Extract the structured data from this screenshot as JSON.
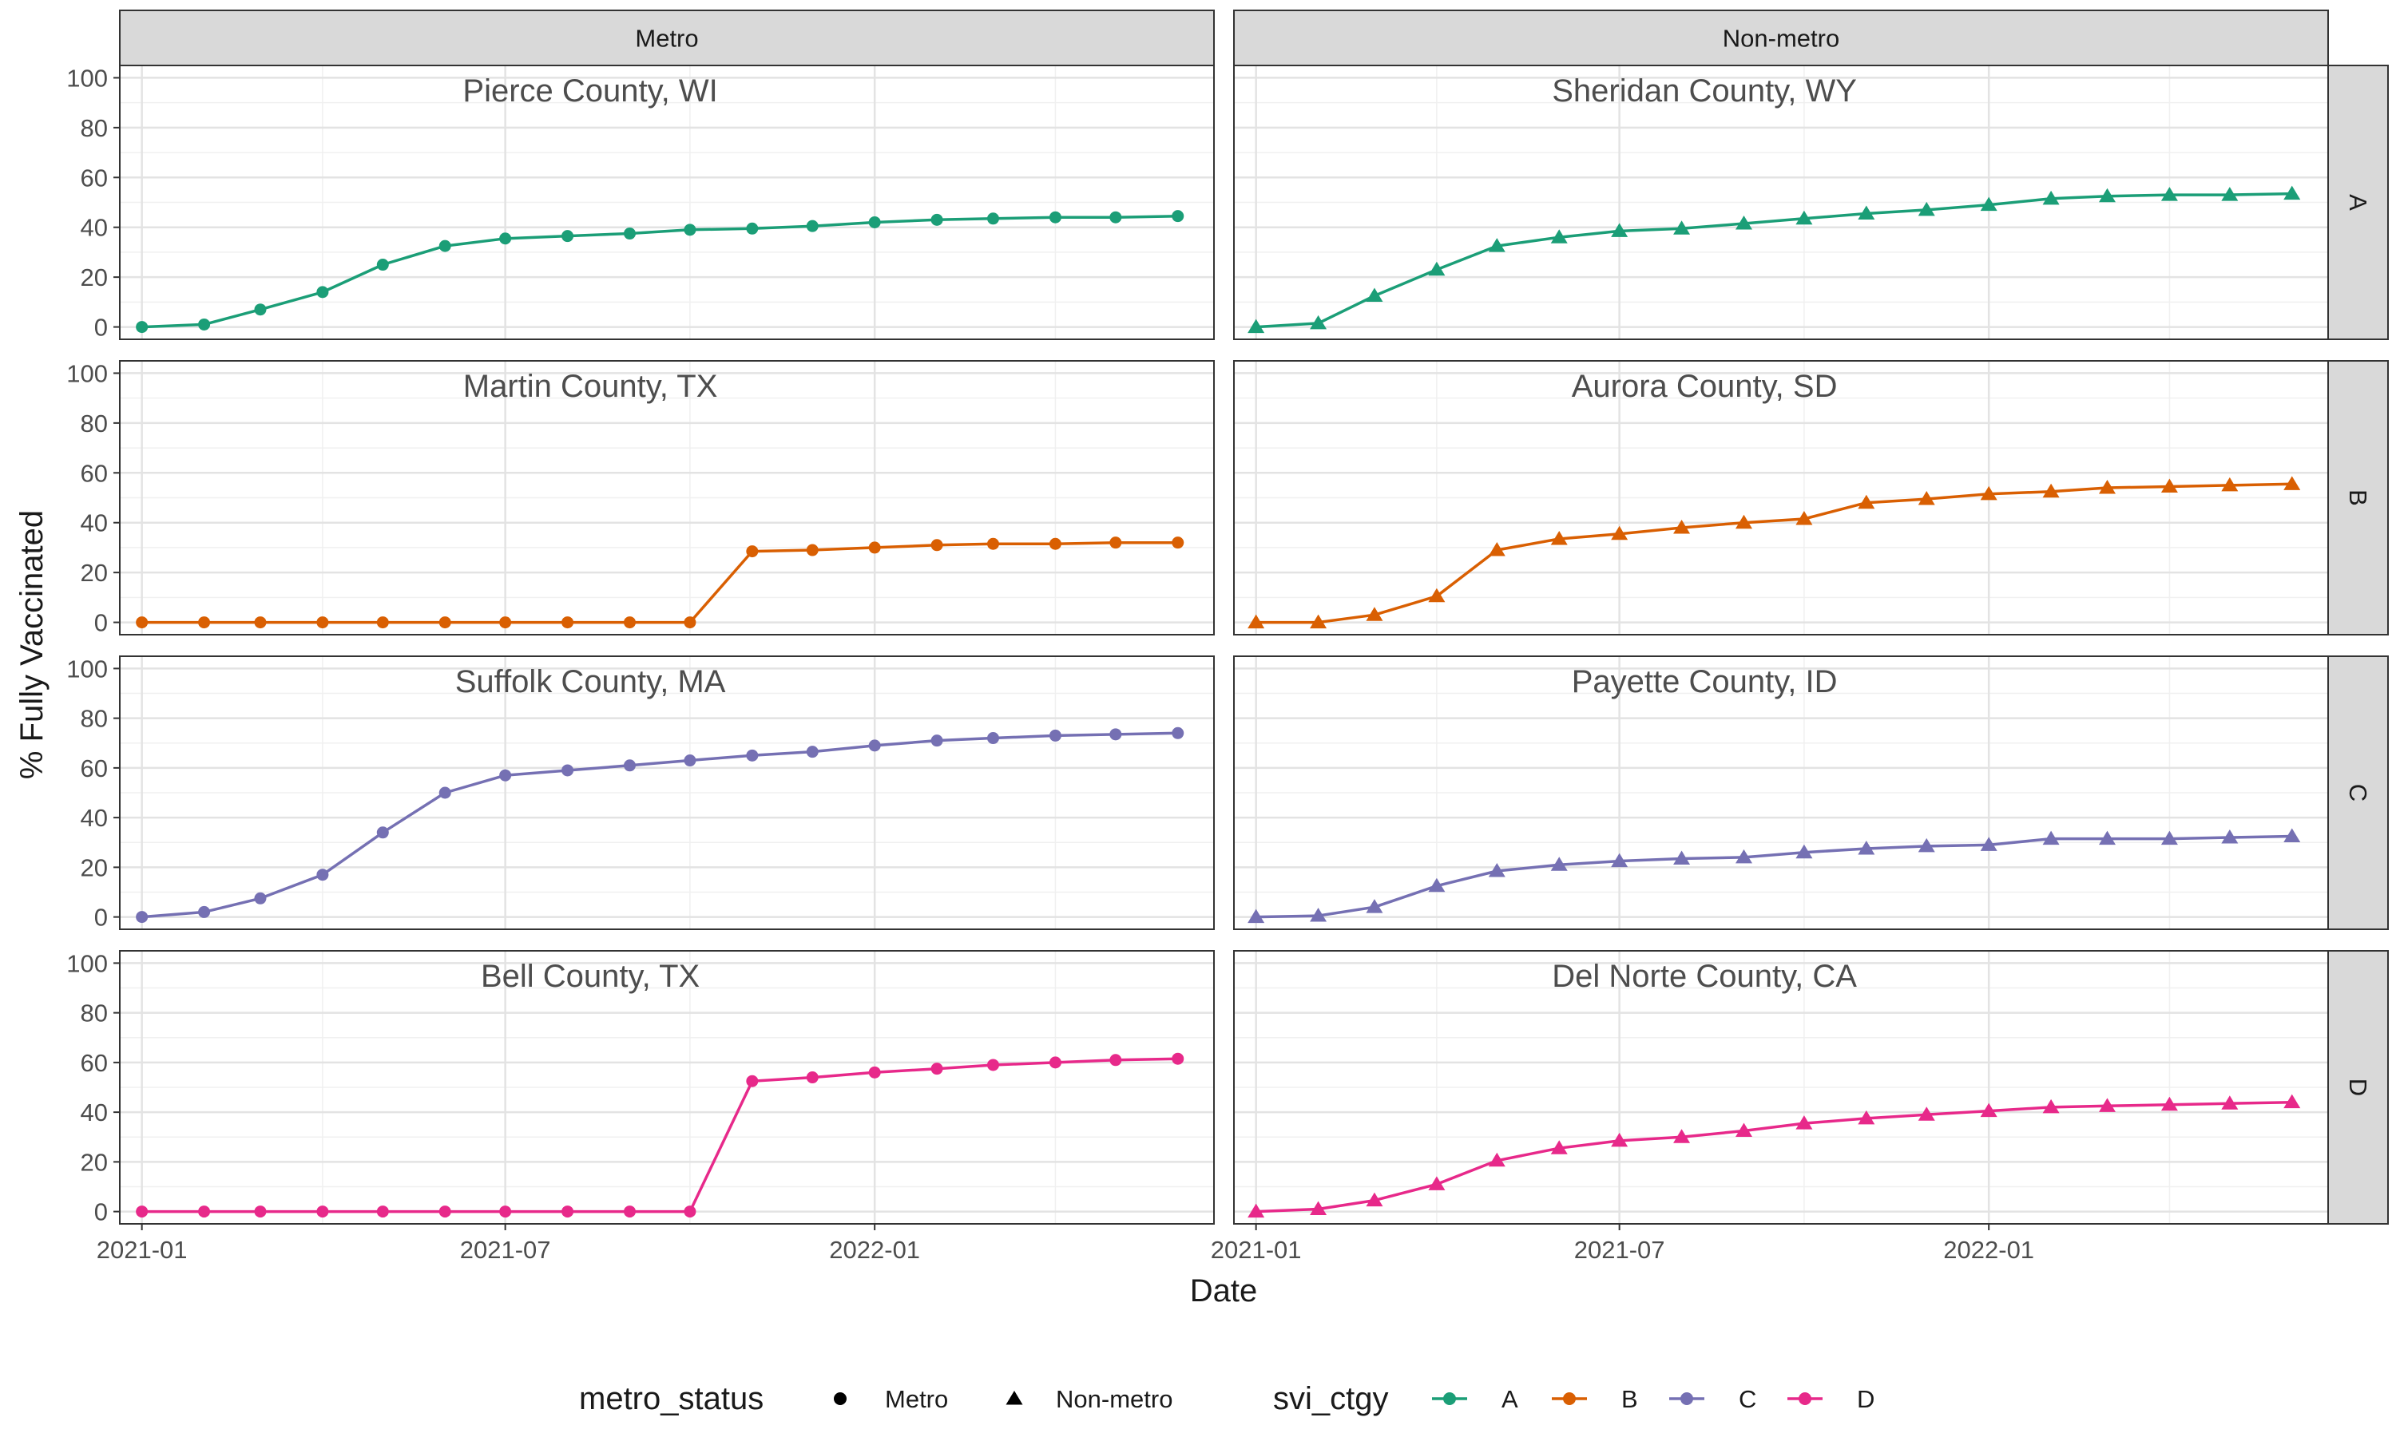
{
  "chart_data": {
    "type": "line",
    "xlabel": "Date",
    "ylabel": "% Fully Vaccinated",
    "ylim": [
      0,
      100
    ],
    "yticks": [
      0,
      20,
      40,
      60,
      80,
      100
    ],
    "xlim": [
      "2020-12-21",
      "2022-06-19"
    ],
    "xticks": [
      {
        "date": "2021-01-01",
        "label": "2021-01"
      },
      {
        "date": "2021-07-01",
        "label": "2021-07"
      },
      {
        "date": "2022-01-01",
        "label": "2022-01"
      }
    ],
    "x": [
      "2021-01-01",
      "2021-02-01",
      "2021-03-01",
      "2021-04-01",
      "2021-05-01",
      "2021-06-01",
      "2021-07-01",
      "2021-08-01",
      "2021-09-01",
      "2021-10-01",
      "2021-11-01",
      "2021-12-01",
      "2022-01-01",
      "2022-02-01",
      "2022-03-01",
      "2022-04-01",
      "2022-05-01",
      "2022-06-01"
    ],
    "grid": true,
    "legend_position": "bottom",
    "column_strips": [
      "Metro",
      "Non-metro"
    ],
    "row_strips": [
      "A",
      "B",
      "C",
      "D"
    ],
    "colors": {
      "A": "#1b9e77",
      "B": "#d95f02",
      "C": "#7570b3",
      "D": "#e7298a"
    },
    "panels": [
      {
        "column": "Metro",
        "row": "A",
        "county": "Pierce County, WI",
        "values": [
          0,
          1,
          7,
          14,
          25,
          32.5,
          35.5,
          36.5,
          37.5,
          39,
          39.5,
          40.5,
          42,
          43,
          43.5,
          44,
          44,
          44.5
        ]
      },
      {
        "column": "Non-metro",
        "row": "A",
        "county": "Sheridan County, WY",
        "values": [
          0,
          1.5,
          12.5,
          23,
          32.5,
          36,
          38.5,
          39.5,
          41.5,
          43.5,
          45.5,
          47,
          49,
          51.5,
          52.5,
          53,
          53,
          53.5
        ]
      },
      {
        "column": "Metro",
        "row": "B",
        "county": "Martin County, TX",
        "values": [
          0,
          0,
          0,
          0,
          0,
          0,
          0,
          0,
          0,
          0,
          28.5,
          29,
          30,
          31,
          31.5,
          31.5,
          32,
          32
        ]
      },
      {
        "column": "Non-metro",
        "row": "B",
        "county": "Aurora County, SD",
        "values": [
          0,
          0,
          3,
          10.5,
          29,
          33.5,
          35.5,
          38,
          40,
          41.5,
          48,
          49.5,
          51.5,
          52.5,
          54,
          54.5,
          55,
          55.5
        ]
      },
      {
        "column": "Metro",
        "row": "C",
        "county": "Suffolk County, MA",
        "values": [
          0,
          2,
          7.5,
          17,
          34,
          50,
          57,
          59,
          61,
          63,
          65,
          66.5,
          69,
          71,
          72,
          73,
          73.5,
          74
        ]
      },
      {
        "column": "Non-metro",
        "row": "C",
        "county": "Payette County, ID",
        "values": [
          0,
          0.5,
          4,
          12.5,
          18.5,
          21,
          22.5,
          23.5,
          24,
          26,
          27.5,
          28.5,
          29,
          31.5,
          31.5,
          31.5,
          32,
          32.5
        ]
      },
      {
        "column": "Metro",
        "row": "D",
        "county": "Bell County, TX",
        "values": [
          0,
          0,
          0,
          0,
          0,
          0,
          0,
          0,
          0,
          0,
          52.5,
          54,
          56,
          57.5,
          59,
          60,
          61,
          61.5
        ]
      },
      {
        "column": "Non-metro",
        "row": "D",
        "county": "Del Norte County, CA",
        "values": [
          0,
          1,
          4.5,
          11,
          20.5,
          25.5,
          28.5,
          30,
          32.5,
          35.5,
          37.5,
          39,
          40.5,
          42,
          42.5,
          43,
          43.5,
          44
        ]
      }
    ],
    "legend": {
      "shape_title": "metro_status",
      "shapes": [
        {
          "label": "Metro",
          "shape": "circle"
        },
        {
          "label": "Non-metro",
          "shape": "triangle"
        }
      ],
      "color_title": "svi_ctgy",
      "colors": [
        {
          "label": "A",
          "key": "A"
        },
        {
          "label": "B",
          "key": "B"
        },
        {
          "label": "C",
          "key": "C"
        },
        {
          "label": "D",
          "key": "D"
        }
      ]
    }
  }
}
